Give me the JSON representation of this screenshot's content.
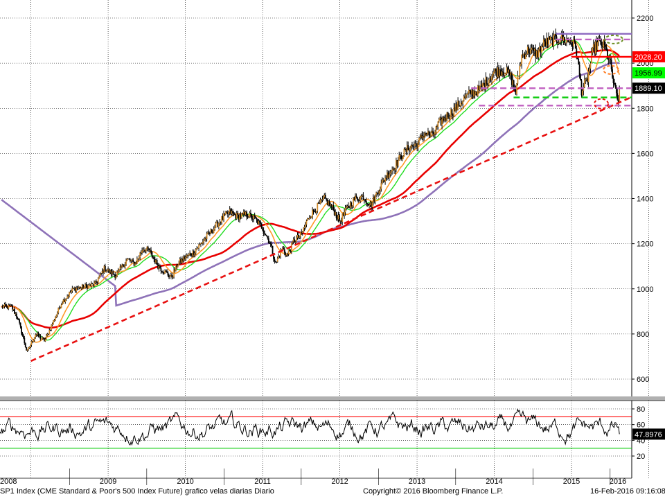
{
  "chart_data": [
    {
      "type": "candlestick",
      "title": "",
      "xlabel": "",
      "ylabel": "",
      "ylim": [
        540,
        2250
      ],
      "y_ticks": [
        600,
        800,
        1000,
        1200,
        1400,
        1600,
        1800,
        2000,
        2200
      ],
      "x_tick_labels": [
        "2008",
        "2009",
        "2010",
        "2011",
        "2012",
        "2013",
        "2014",
        "2015",
        "2016"
      ],
      "x_range_years": [
        2008.1,
        2016.28
      ],
      "grid": true,
      "price_anchors": [
        [
          2008.25,
          920
        ],
        [
          2008.33,
          870
        ],
        [
          2008.45,
          720
        ],
        [
          2008.56,
          800
        ],
        [
          2008.68,
          770
        ],
        [
          2008.9,
          940
        ],
        [
          2009.05,
          1000
        ],
        [
          2009.2,
          1010
        ],
        [
          2009.33,
          1020
        ],
        [
          2009.45,
          1090
        ],
        [
          2009.6,
          1060
        ],
        [
          2009.75,
          1130
        ],
        [
          2009.85,
          1110
        ],
        [
          2009.95,
          1180
        ],
        [
          2010.03,
          1170
        ],
        [
          2010.15,
          1100
        ],
        [
          2010.25,
          1070
        ],
        [
          2010.32,
          1050
        ],
        [
          2010.4,
          1110
        ],
        [
          2010.5,
          1140
        ],
        [
          2010.6,
          1160
        ],
        [
          2010.7,
          1200
        ],
        [
          2010.8,
          1240
        ],
        [
          2010.9,
          1280
        ],
        [
          2011.0,
          1320
        ],
        [
          2011.08,
          1340
        ],
        [
          2011.17,
          1320
        ],
        [
          2011.3,
          1330
        ],
        [
          2011.4,
          1310
        ],
        [
          2011.5,
          1270
        ],
        [
          2011.6,
          1200
        ],
        [
          2011.67,
          1110
        ],
        [
          2011.75,
          1180
        ],
        [
          2011.82,
          1150
        ],
        [
          2011.9,
          1210
        ],
        [
          2012.0,
          1240
        ],
        [
          2012.1,
          1320
        ],
        [
          2012.2,
          1360
        ],
        [
          2012.3,
          1400
        ],
        [
          2012.4,
          1360
        ],
        [
          2012.5,
          1300
        ],
        [
          2012.6,
          1360
        ],
        [
          2012.7,
          1400
        ],
        [
          2012.8,
          1410
        ],
        [
          2012.9,
          1370
        ],
        [
          2013.0,
          1440
        ],
        [
          2013.1,
          1500
        ],
        [
          2013.2,
          1540
        ],
        [
          2013.3,
          1590
        ],
        [
          2013.4,
          1630
        ],
        [
          2013.5,
          1640
        ],
        [
          2013.6,
          1690
        ],
        [
          2013.7,
          1680
        ],
        [
          2013.8,
          1740
        ],
        [
          2013.9,
          1770
        ],
        [
          2014.0,
          1800
        ],
        [
          2014.1,
          1840
        ],
        [
          2014.2,
          1870
        ],
        [
          2014.3,
          1880
        ],
        [
          2014.4,
          1920
        ],
        [
          2014.5,
          1960
        ],
        [
          2014.6,
          1970
        ],
        [
          2014.7,
          1950
        ],
        [
          2014.78,
          1870
        ],
        [
          2014.85,
          2030
        ],
        [
          2014.95,
          2060
        ],
        [
          2015.05,
          2040
        ],
        [
          2015.15,
          2090
        ],
        [
          2015.25,
          2100
        ],
        [
          2015.35,
          2110
        ],
        [
          2015.45,
          2100
        ],
        [
          2015.55,
          2080
        ],
        [
          2015.63,
          1880
        ],
        [
          2015.7,
          1920
        ],
        [
          2015.78,
          2060
        ],
        [
          2015.85,
          2090
        ],
        [
          2015.92,
          2080
        ],
        [
          2016.0,
          2000
        ],
        [
          2016.05,
          1900
        ],
        [
          2016.1,
          1830
        ],
        [
          2016.12,
          1860
        ]
      ],
      "annotations": {
        "trendline": [
          [
            2008.5,
            680
          ],
          [
            2016.28,
            1850
          ]
        ],
        "levels": [
          {
            "value": 2130,
            "from": 2015.3,
            "color": "#8e6bc1",
            "style": "solid"
          },
          {
            "value": 2105,
            "from": 2015.3,
            "color": "#c060c0",
            "style": "dashed"
          },
          {
            "value": 1889,
            "from": 2014.2,
            "color": "#c060c0",
            "style": "dashed"
          },
          {
            "value": 1848,
            "from": 2014.75,
            "color": "#11cc11",
            "style": "dashed"
          },
          {
            "value": 1812,
            "from": 2014.3,
            "color": "#c060c0",
            "style": "dashed"
          },
          {
            "value": 2028,
            "from": 2015.5,
            "color": "#ff0000",
            "style": "solid"
          }
        ]
      },
      "series": [
        {
          "label": "2028.20",
          "value": 2028.2,
          "color": "#ff0000",
          "text_color": "#ffffff"
        },
        {
          "label": "1956.99",
          "value": 1956.99,
          "color": "#00ff00",
          "text_color": "#000000"
        },
        {
          "label": "1889.10",
          "value": 1889.1,
          "color": "#000000",
          "text_color": "#ffffff"
        }
      ]
    },
    {
      "type": "line",
      "title": "",
      "ylim": [
        10,
        95
      ],
      "y_ticks": [
        20,
        40,
        60,
        80
      ],
      "thresholds": [
        {
          "value": 70,
          "color": "#ff0000"
        },
        {
          "value": 30,
          "color": "#00cc00"
        }
      ],
      "series": [
        {
          "label": "47.8976",
          "last_value": 47.8976
        }
      ]
    }
  ],
  "footer": {
    "left": "SP1 Index (CME Standard & Poor's 500 Index Future) grafico velas diarias  Diario",
    "center": "Copyright© 2016 Bloomberg Finance L.P.",
    "right": "16-Feb-2016 09:16:08"
  }
}
